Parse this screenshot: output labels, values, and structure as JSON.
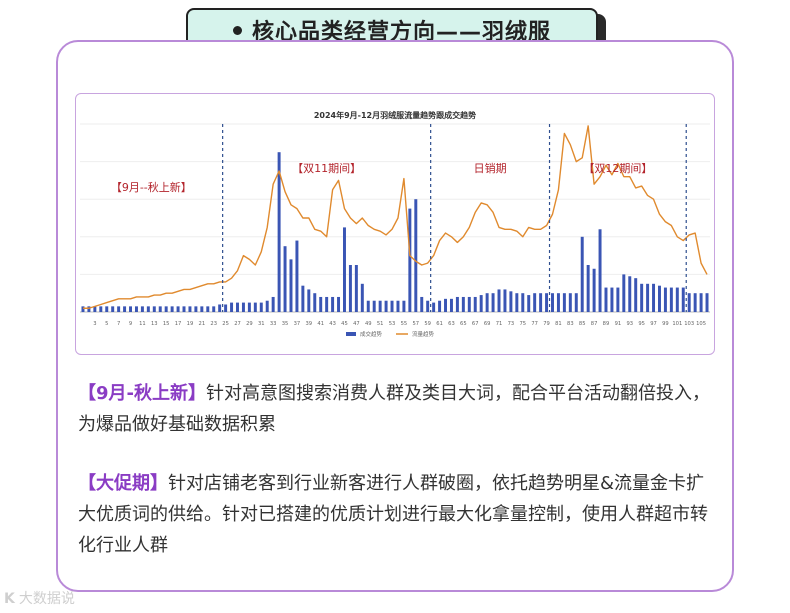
{
  "header": {
    "title": "核心品类经营方向——羽绒服"
  },
  "paragraphs": [
    {
      "tag": "【9月-秋上新】",
      "text": "针对高意图搜索消费人群及类目大词，配合平台活动翻倍投入，为爆品做好基础数据积累"
    },
    {
      "tag": "【大促期】",
      "text": "针对店铺老客到行业新客进行人群破圈，依托趋势明星&流量金卡扩大优质词的供给。针对已搭建的优质计划进行最大化拿量控制，使用人群超市转化行业人群"
    }
  ],
  "watermark": {
    "logo": "K",
    "text": "大数据说"
  },
  "chart_data": {
    "type": "bar+line",
    "title": "2024年9月-12月羽绒服流量趋势跟成交趋势",
    "x": [
      1,
      2,
      3,
      4,
      5,
      6,
      7,
      8,
      9,
      10,
      11,
      12,
      13,
      14,
      15,
      16,
      17,
      18,
      19,
      20,
      21,
      22,
      23,
      24,
      25,
      26,
      27,
      28,
      29,
      30,
      31,
      32,
      33,
      34,
      35,
      36,
      37,
      38,
      39,
      40,
      41,
      42,
      43,
      44,
      45,
      46,
      47,
      48,
      49,
      50,
      51,
      52,
      53,
      54,
      55,
      56,
      57,
      58,
      59,
      60,
      61,
      62,
      63,
      64,
      65,
      66,
      67,
      68,
      69,
      70,
      71,
      72,
      73,
      74,
      75,
      76,
      77,
      78,
      79,
      80,
      81,
      82,
      83,
      84,
      85,
      86,
      87,
      88,
      89,
      90,
      91,
      92,
      93,
      94,
      95,
      96,
      97,
      98,
      99,
      100,
      101,
      102,
      103,
      104,
      105,
      106
    ],
    "x_tick_labels": [
      "3",
      "5",
      "7",
      "9",
      "11",
      "13",
      "15",
      "17",
      "19",
      "21",
      "23",
      "25",
      "27",
      "29",
      "31",
      "33",
      "35",
      "37",
      "39",
      "41",
      "43",
      "45",
      "47",
      "49",
      "51",
      "53",
      "55",
      "57",
      "59",
      "61",
      "63",
      "65",
      "67",
      "69",
      "71",
      "73",
      "75",
      "77",
      "79",
      "81",
      "83",
      "85",
      "87",
      "89",
      "91",
      "93",
      "95",
      "97",
      "99",
      "101",
      "103",
      "105"
    ],
    "series": [
      {
        "name": "成交趋势",
        "kind": "bar",
        "color": "#3a55b4",
        "values": [
          3,
          3,
          3,
          3,
          3,
          3,
          3,
          3,
          3,
          3,
          3,
          3,
          3,
          3,
          3,
          3,
          3,
          3,
          3,
          3,
          3,
          3,
          3,
          4,
          4,
          5,
          5,
          5,
          5,
          5,
          5,
          6,
          8,
          85,
          35,
          28,
          38,
          14,
          12,
          10,
          8,
          8,
          8,
          8,
          45,
          25,
          25,
          15,
          6,
          6,
          6,
          6,
          6,
          6,
          6,
          55,
          60,
          8,
          6,
          5,
          6,
          7,
          7,
          8,
          8,
          8,
          8,
          9,
          10,
          10,
          12,
          12,
          11,
          10,
          10,
          9,
          10,
          10,
          10,
          10,
          10,
          10,
          10,
          10,
          40,
          25,
          23,
          44,
          13,
          13,
          13,
          20,
          19,
          18,
          15,
          15,
          15,
          14,
          13,
          13,
          13,
          13,
          10,
          10,
          10,
          10
        ]
      },
      {
        "name": "流量趋势",
        "kind": "line",
        "color": "#e08a2e",
        "values": [
          2,
          2,
          3,
          4,
          5,
          6,
          7,
          7,
          7,
          8,
          8,
          8,
          9,
          9,
          10,
          10,
          11,
          12,
          12,
          13,
          14,
          15,
          15,
          16,
          16,
          18,
          22,
          30,
          28,
          25,
          32,
          45,
          68,
          75,
          64,
          57,
          55,
          50,
          50,
          44,
          43,
          40,
          65,
          70,
          55,
          50,
          47,
          50,
          46,
          44,
          43,
          41,
          44,
          50,
          71,
          30,
          27,
          25,
          26,
          30,
          38,
          42,
          40,
          37,
          40,
          45,
          53,
          58,
          57,
          53,
          45,
          44,
          44,
          43,
          40,
          45,
          44,
          44,
          46,
          52,
          65,
          95,
          89,
          80,
          82,
          99,
          68,
          72,
          78,
          73,
          79,
          72,
          72,
          66,
          67,
          62,
          60,
          52,
          48,
          46,
          40,
          38,
          41,
          42,
          26,
          20
        ]
      }
    ],
    "annotations": [
      {
        "label": "【9月--秋上新】",
        "x_from": 1,
        "x_to": 24
      },
      {
        "label": "【双11期间】",
        "x_from": 25,
        "x_to": 59
      },
      {
        "label": "日销期",
        "x_from": 60,
        "x_to": 79
      },
      {
        "label": "【双12期间】",
        "x_from": 80,
        "x_to": 102
      }
    ],
    "dividers_x": [
      24.5,
      59.5,
      79.5,
      102.5
    ],
    "ylim": [
      0,
      100
    ],
    "legend": "bottom-center"
  }
}
